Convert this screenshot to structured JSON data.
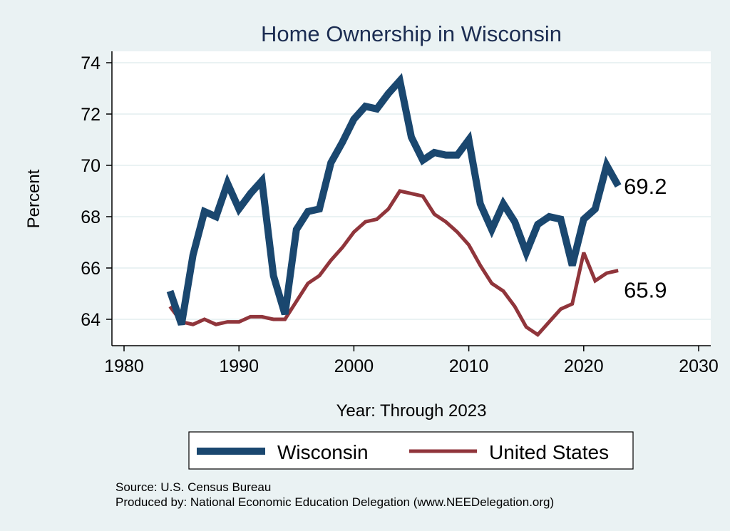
{
  "chart_data": {
    "type": "line",
    "title": "Home Ownership in Wisconsin",
    "xlabel": "Year: Through 2023",
    "ylabel": "Percent",
    "xlim": [
      1980,
      2030
    ],
    "ylim": [
      63,
      74.5
    ],
    "xticks": [
      1980,
      1990,
      2000,
      2010,
      2020,
      2030
    ],
    "yticks": [
      64,
      66,
      68,
      70,
      72,
      74
    ],
    "grid": "horizontal",
    "legend_position": "bottom",
    "x": [
      1984,
      1985,
      1986,
      1987,
      1988,
      1989,
      1990,
      1991,
      1992,
      1993,
      1994,
      1995,
      1996,
      1997,
      1998,
      1999,
      2000,
      2001,
      2002,
      2003,
      2004,
      2005,
      2006,
      2007,
      2008,
      2009,
      2010,
      2011,
      2012,
      2013,
      2014,
      2015,
      2016,
      2017,
      2018,
      2019,
      2020,
      2021,
      2022,
      2023
    ],
    "series": [
      {
        "name": "Wisconsin",
        "color": "#1a476f",
        "values": [
          65.1,
          63.8,
          66.5,
          68.2,
          68.0,
          69.3,
          68.3,
          68.9,
          69.4,
          65.7,
          64.2,
          67.5,
          68.2,
          68.3,
          70.1,
          70.9,
          71.8,
          72.3,
          72.2,
          72.8,
          73.3,
          71.1,
          70.2,
          70.5,
          70.4,
          70.4,
          71.0,
          68.5,
          67.5,
          68.5,
          67.8,
          66.6,
          67.7,
          68.0,
          67.9,
          66.1,
          67.9,
          68.3,
          70.0,
          69.2
        ],
        "end_label": "69.2"
      },
      {
        "name": "United States",
        "color": "#90353b",
        "values": [
          64.5,
          63.9,
          63.8,
          64.0,
          63.8,
          63.9,
          63.9,
          64.1,
          64.1,
          64.0,
          64.0,
          64.7,
          65.4,
          65.7,
          66.3,
          66.8,
          67.4,
          67.8,
          67.9,
          68.3,
          69.0,
          68.9,
          68.8,
          68.1,
          67.8,
          67.4,
          66.9,
          66.1,
          65.4,
          65.1,
          64.5,
          63.7,
          63.4,
          63.9,
          64.4,
          64.6,
          66.6,
          65.5,
          65.8,
          65.9
        ],
        "end_label": "65.9"
      }
    ]
  },
  "notes": {
    "source": "Source: U.S. Census Bureau",
    "produced_by": "Produced by: National Economic Education Delegation (www.NEEDelegation.org)"
  }
}
